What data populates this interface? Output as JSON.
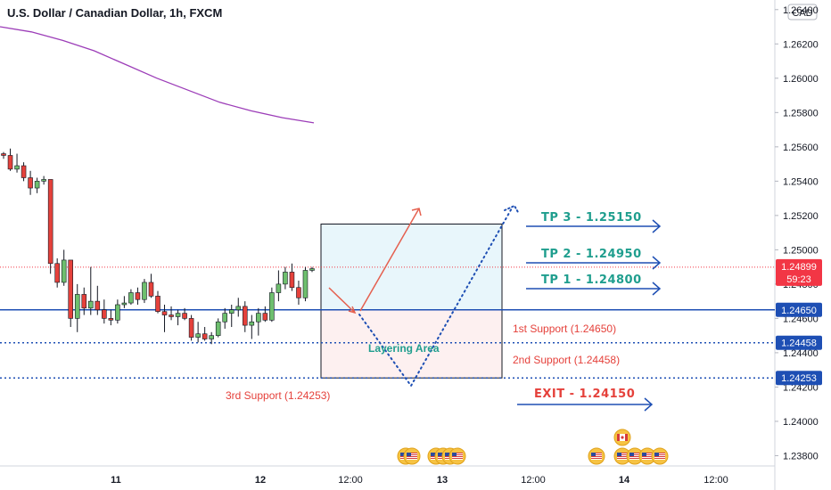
{
  "header": {
    "title": "U.S. Dollar / Canadian Dollar, 1h, FXCM"
  },
  "currency_badge": "CAD",
  "chart_data": {
    "type": "candlestick",
    "title": "U.S. Dollar / Canadian Dollar, 1h, FXCM",
    "ylim": [
      1.2374,
      1.2643
    ],
    "price_ticks": [
      "1.26400",
      "1.26200",
      "1.26000",
      "1.25800",
      "1.25600",
      "1.25400",
      "1.25200",
      "1.25000",
      "1.24800",
      "1.24600",
      "1.24400",
      "1.24200",
      "1.24000",
      "1.23800"
    ],
    "time_ticks": [
      "11",
      "12",
      "12:00",
      "13",
      "12:00",
      "14",
      "12:00"
    ],
    "moving_average": [
      1.263,
      1.2627,
      1.2622,
      1.2616,
      1.2608,
      1.26,
      1.2593,
      1.2586,
      1.2581,
      1.2577,
      1.2574
    ],
    "candles": [
      [
        1.2556,
        1.2557,
        1.2553,
        1.2555
      ],
      [
        1.2555,
        1.2559,
        1.2546,
        1.2547
      ],
      [
        1.2547,
        1.2556,
        1.2545,
        1.2549
      ],
      [
        1.2549,
        1.2551,
        1.254,
        1.2542
      ],
      [
        1.2542,
        1.2546,
        1.2532,
        1.2536
      ],
      [
        1.2536,
        1.2542,
        1.2533,
        1.254
      ],
      [
        1.254,
        1.2543,
        1.2538,
        1.2541
      ],
      [
        1.2541,
        1.2541,
        1.2486,
        1.2492
      ],
      [
        1.2492,
        1.2495,
        1.2478,
        1.2481
      ],
      [
        1.2481,
        1.25,
        1.2479,
        1.2494
      ],
      [
        1.2494,
        1.2494,
        1.2455,
        1.246
      ],
      [
        1.246,
        1.248,
        1.2452,
        1.2474
      ],
      [
        1.2474,
        1.2478,
        1.2462,
        1.2466
      ],
      [
        1.2466,
        1.249,
        1.2462,
        1.247
      ],
      [
        1.247,
        1.2479,
        1.2462,
        1.2465
      ],
      [
        1.2465,
        1.2471,
        1.2457,
        1.246
      ],
      [
        1.246,
        1.2465,
        1.2456,
        1.2459
      ],
      [
        1.2459,
        1.2471,
        1.2457,
        1.2468
      ],
      [
        1.2468,
        1.2473,
        1.2466,
        1.2469
      ],
      [
        1.2469,
        1.2477,
        1.2468,
        1.2475
      ],
      [
        1.2475,
        1.2478,
        1.2468,
        1.2471
      ],
      [
        1.2471,
        1.2483,
        1.2469,
        1.2481
      ],
      [
        1.2481,
        1.2486,
        1.2472,
        1.2473
      ],
      [
        1.2473,
        1.2476,
        1.2463,
        1.2464
      ],
      [
        1.2464,
        1.2468,
        1.2452,
        1.2462
      ],
      [
        1.2462,
        1.2467,
        1.2459,
        1.2461
      ],
      [
        1.2461,
        1.2465,
        1.2456,
        1.2463
      ],
      [
        1.2463,
        1.2466,
        1.2459,
        1.246
      ],
      [
        1.246,
        1.2462,
        1.2447,
        1.2449
      ],
      [
        1.2449,
        1.2458,
        1.2446,
        1.2451
      ],
      [
        1.2451,
        1.2455,
        1.2447,
        1.2448
      ],
      [
        1.2448,
        1.2452,
        1.2445,
        1.245
      ],
      [
        1.245,
        1.246,
        1.2449,
        1.2458
      ],
      [
        1.2458,
        1.2466,
        1.2454,
        1.2463
      ],
      [
        1.2463,
        1.2468,
        1.2455,
        1.2465
      ],
      [
        1.2465,
        1.2472,
        1.2461,
        1.2467
      ],
      [
        1.2467,
        1.247,
        1.2452,
        1.2456
      ],
      [
        1.2456,
        1.2462,
        1.2448,
        1.2458
      ],
      [
        1.2458,
        1.2466,
        1.245,
        1.2463
      ],
      [
        1.2463,
        1.2467,
        1.2458,
        1.2459
      ],
      [
        1.2459,
        1.2478,
        1.2458,
        1.2475
      ],
      [
        1.2475,
        1.2488,
        1.247,
        1.248
      ],
      [
        1.248,
        1.249,
        1.2477,
        1.2487
      ],
      [
        1.2487,
        1.2492,
        1.2476,
        1.2478
      ],
      [
        1.2478,
        1.2482,
        1.2468,
        1.2472
      ],
      [
        1.2472,
        1.249,
        1.247,
        1.2488
      ],
      [
        1.2488,
        1.249,
        1.2487,
        1.2489
      ]
    ],
    "levels": [
      {
        "name": "1st Support",
        "price": 1.2465,
        "value": "1.24650",
        "style": "solid",
        "color": "#1e4fb4"
      },
      {
        "name": "2nd Support",
        "price": 1.24458,
        "value": "1.24458",
        "style": "dotted",
        "color": "#1e4fb4"
      },
      {
        "name": "3rd Support",
        "price": 1.24253,
        "value": "1.24253",
        "style": "dotted",
        "color": "#1e4fb4"
      }
    ],
    "current_price": {
      "value": "1.24899",
      "countdown": "59:23",
      "price": 1.24899,
      "color": "#f23645"
    },
    "layering_box": {
      "top": 1.2515,
      "mid": 1.2465,
      "bottom": 1.24253
    },
    "colors": {
      "bull": "#6ebf6e",
      "bear": "#e5413b",
      "ma": "#9c3db8",
      "line": "#1e4fb4",
      "tp": "#1f9e8e",
      "arrow_red": "#e5604f"
    }
  },
  "annotations": {
    "tp3": "TP 3 - 1.25150",
    "tp2": "TP 2 - 1.24950",
    "tp1": "TP 1 - 1.24800",
    "exit": "EXIT - 1.24150",
    "support1": "1st Support (1.24650)",
    "support2": "2nd Support (1.24458)",
    "support3": "3rd Support (1.24253)",
    "layering": "Layering Area"
  },
  "events": {
    "flag_icons": [
      "us-flag-icon",
      "ca-flag-icon"
    ]
  }
}
